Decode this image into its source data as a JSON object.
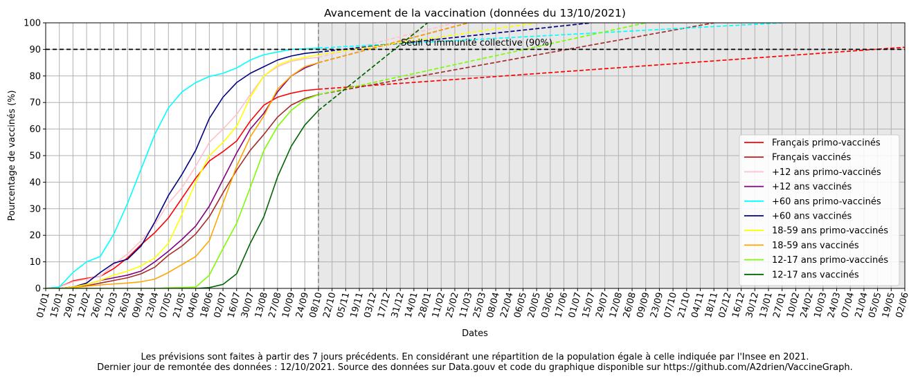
{
  "chart_data": {
    "type": "line",
    "title": "Avancement de la vaccination (données du 13/10/2021)",
    "xlabel": "Dates",
    "ylabel": "Pourcentage de vaccinés (%)",
    "ylim": [
      0,
      100
    ],
    "y_ticks": [
      0,
      10,
      20,
      30,
      40,
      50,
      60,
      70,
      80,
      90,
      100
    ],
    "x_ticks": [
      "01/01",
      "15/01",
      "29/01",
      "12/02",
      "26/02",
      "12/03",
      "26/03",
      "09/04",
      "23/04",
      "07/05",
      "21/05",
      "04/06",
      "18/06",
      "02/07",
      "16/07",
      "30/07",
      "13/08",
      "27/08",
      "10/09",
      "24/09",
      "08/10",
      "22/10",
      "05/11",
      "19/11",
      "03/12",
      "17/12",
      "31/12",
      "14/01",
      "28/01",
      "11/02",
      "25/02",
      "11/03",
      "25/03",
      "08/04",
      "22/04",
      "06/05",
      "20/05",
      "03/06",
      "17/06",
      "01/07",
      "15/07",
      "29/07",
      "12/08",
      "26/08",
      "09/09",
      "23/09",
      "07/10",
      "21/10",
      "04/11",
      "18/11",
      "02/12",
      "16/12",
      "30/12",
      "13/01",
      "27/01",
      "10/02",
      "24/02",
      "10/03",
      "24/03",
      "07/04",
      "21/04",
      "05/05",
      "19/05",
      "02/06"
    ],
    "x_unit": "weeks from 01/01/2021 (2 weeks per tick)",
    "grid": true,
    "legend_position": "lower-right",
    "forecast_start": "08/10",
    "threshold": {
      "value": 90,
      "label": "Seuil d'immunité collective (90%)"
    },
    "series": [
      {
        "name": "Français primo-vaccinés",
        "color": "#ff0000",
        "x": [
          0,
          2,
          4,
          6,
          8,
          10,
          12,
          14,
          16,
          18,
          20,
          22,
          24,
          26,
          28,
          30,
          32,
          34,
          36,
          38,
          40
        ],
        "values": [
          0,
          0.5,
          2.8,
          3.8,
          4.5,
          7.5,
          11.5,
          16.5,
          21,
          26.5,
          34,
          41.5,
          48,
          51.5,
          55.5,
          63,
          69,
          72,
          73.5,
          74.5,
          75
        ],
        "forecast": [
          [
            40,
            75
          ],
          [
            176,
            100
          ]
        ]
      },
      {
        "name": "Français vaccinés",
        "color": "#a52a2a",
        "x": [
          0,
          2,
          4,
          6,
          8,
          10,
          12,
          14,
          16,
          18,
          20,
          22,
          24,
          26,
          28,
          30,
          32,
          34,
          36,
          38,
          40
        ],
        "values": [
          0,
          0,
          0.5,
          1,
          2,
          3,
          4,
          5.5,
          8,
          12.5,
          16,
          20.5,
          27,
          36,
          44.5,
          52,
          58,
          64.5,
          69,
          71.5,
          73
        ],
        "forecast": [
          [
            40,
            73
          ],
          [
            98,
            100
          ]
        ]
      },
      {
        "name": "+12 ans primo-vaccinés",
        "color": "#ffc0cb",
        "x": [
          0,
          2,
          4,
          6,
          8,
          10,
          12,
          14,
          16,
          18,
          20,
          22,
          24,
          26,
          28,
          30,
          32,
          34,
          36,
          38,
          40
        ],
        "values": [
          0,
          0.5,
          2.5,
          3.5,
          4.5,
          9,
          13,
          18,
          24,
          32,
          38,
          46,
          55,
          60,
          65.5,
          73,
          80,
          83.5,
          85.5,
          86.5,
          87
        ],
        "forecast": [
          [
            40,
            87
          ],
          [
            60,
            100
          ]
        ]
      },
      {
        "name": "+12 ans vaccinés",
        "color": "#800080",
        "x": [
          0,
          2,
          4,
          6,
          8,
          10,
          12,
          14,
          16,
          18,
          20,
          22,
          24,
          26,
          28,
          30,
          32,
          34,
          36,
          38,
          40
        ],
        "values": [
          0,
          0,
          0.5,
          1.5,
          3,
          4,
          5,
          6.5,
          10,
          14,
          18.5,
          23.5,
          31,
          41,
          51,
          60,
          66,
          74,
          80,
          83,
          85
        ],
        "forecast": [
          [
            40,
            85
          ],
          [
            62,
            100
          ]
        ]
      },
      {
        "name": "+60 ans primo-vaccinés",
        "color": "#00ffff",
        "x": [
          0,
          2,
          4,
          6,
          8,
          10,
          12,
          14,
          16,
          18,
          20,
          22,
          24,
          26,
          28,
          30,
          32,
          34,
          36,
          38,
          40
        ],
        "values": [
          0,
          0.5,
          6,
          10,
          12,
          20.5,
          32,
          45,
          58,
          68,
          74,
          77.5,
          79.8,
          81,
          83,
          86,
          88,
          89,
          90,
          90.2,
          90.5
        ],
        "forecast": [
          [
            40,
            90.5
          ],
          [
            108,
            100
          ]
        ]
      },
      {
        "name": "+60 ans vaccinés",
        "color": "#000080",
        "x": [
          0,
          2,
          4,
          6,
          8,
          10,
          12,
          14,
          16,
          18,
          20,
          22,
          24,
          26,
          28,
          30,
          32,
          34,
          36,
          38,
          40
        ],
        "values": [
          0,
          0,
          0.5,
          2,
          6,
          9.5,
          11,
          16,
          25,
          35,
          43,
          52,
          64,
          72,
          77.5,
          81,
          83.5,
          86,
          87.5,
          88.5,
          89
        ],
        "forecast": [
          [
            40,
            89
          ],
          [
            80,
            100
          ]
        ]
      },
      {
        "name": "18-59 ans primo-vaccinés",
        "color": "#ffff00",
        "x": [
          0,
          2,
          4,
          6,
          8,
          10,
          12,
          14,
          16,
          18,
          20,
          22,
          24,
          26,
          28,
          30,
          32,
          34,
          36,
          38,
          40
        ],
        "values": [
          0,
          0,
          0.5,
          1.5,
          3,
          5,
          6.5,
          8.5,
          11.5,
          17,
          28,
          40,
          50,
          55,
          61,
          72,
          80,
          84,
          86,
          87,
          88
        ],
        "forecast": [
          [
            40,
            88
          ],
          [
            72,
            100
          ]
        ]
      },
      {
        "name": "18-59 ans vaccinés",
        "color": "#ffa500",
        "x": [
          0,
          2,
          4,
          6,
          8,
          10,
          12,
          14,
          16,
          18,
          20,
          22,
          24,
          26,
          28,
          30,
          32,
          34,
          36,
          38,
          40
        ],
        "values": [
          0,
          0,
          0.3,
          0.8,
          1.3,
          1.7,
          2,
          2.5,
          3.5,
          6,
          9,
          12,
          18,
          32,
          46,
          57,
          65,
          75,
          80,
          83.5,
          85
        ],
        "forecast": [
          [
            40,
            85
          ],
          [
            62,
            100
          ]
        ]
      },
      {
        "name": "12-17 ans primo-vaccinés",
        "color": "#7cfc00",
        "x": [
          0,
          2,
          4,
          6,
          8,
          10,
          12,
          14,
          16,
          18,
          20,
          22,
          24,
          26,
          28,
          30,
          32,
          34,
          36,
          38,
          40
        ],
        "values": [
          0,
          0,
          0,
          0,
          0,
          0,
          0,
          0,
          0,
          0.2,
          0.3,
          0.5,
          5,
          15,
          24.5,
          38,
          52,
          61,
          67,
          71,
          73
        ],
        "forecast": [
          [
            40,
            73
          ],
          [
            88,
            100
          ]
        ]
      },
      {
        "name": "12-17 ans vaccinés",
        "color": "#006400",
        "x": [
          0,
          2,
          4,
          6,
          8,
          10,
          12,
          14,
          16,
          18,
          20,
          22,
          24,
          26,
          28,
          30,
          32,
          34,
          36,
          38,
          40
        ],
        "values": [
          0,
          0,
          0,
          0,
          0,
          0,
          0,
          0,
          0,
          0,
          0,
          0,
          0.3,
          1.5,
          5.5,
          17,
          27,
          42,
          53.5,
          61.5,
          67
        ],
        "forecast": [
          [
            40,
            67
          ],
          [
            56,
            100
          ]
        ]
      }
    ]
  },
  "footnote": {
    "line1": "Les prévisions sont faites à partir des 7 jours précédents. En considérant une répartition de la population égale à celle indiquée par l'Insee en 2021.",
    "line2": "Dernier jour de remontée des données : 12/10/2021. Source des données sur Data.gouv et code du graphique disponible sur https://github.com/A2drien/VaccineGraph."
  }
}
